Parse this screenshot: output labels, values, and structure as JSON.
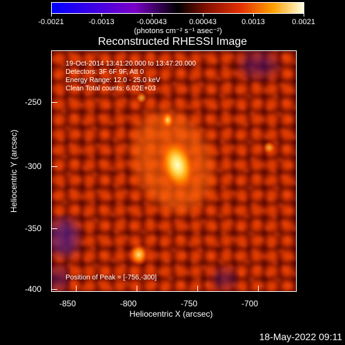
{
  "colorbar": {
    "ticks": [
      "-0.0021",
      "-0.0013",
      "-0.00043",
      "0.00043",
      "0.0013",
      "0.0021"
    ],
    "units": "(photons cm⁻² s⁻¹ asec⁻²)"
  },
  "title": "Reconstructed RHESSI Image",
  "info": {
    "line1": "19-Oct-2014 13:41:20.000 to 13:47:20.000",
    "line2": "Detectors: 3F 6F 9F, Att 0",
    "line3": "Energy Range: 12.0 - 25.0 keV",
    "line4": "Clean    Total counts: 6.02E+03"
  },
  "peak": "Position of Peak = [-756,-300]",
  "axes": {
    "xlabel": "Heliocentric X (arcsec)",
    "ylabel": "Heliocentric Y (arcsec)",
    "xticks": [
      "-850",
      "-800",
      "-750",
      "-700"
    ],
    "yticks": [
      "-250",
      "-300",
      "-350",
      "-400"
    ]
  },
  "footer": "18-May-2022 09:11"
}
